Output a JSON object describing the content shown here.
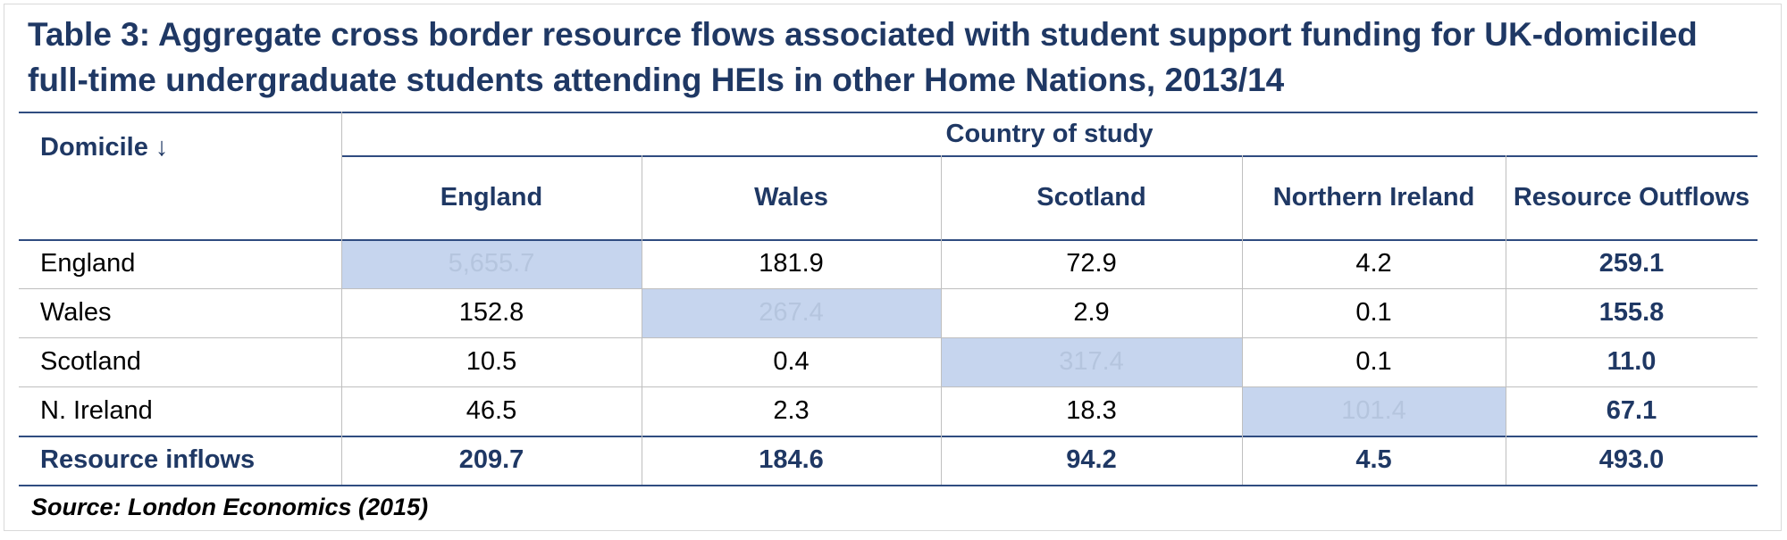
{
  "title": "Table 3: Aggregate cross border resource flows associated with student support funding for UK-domiciled full-time undergraduate students attending HEIs in other Home Nations, 2013/14",
  "table": {
    "group_header": "Country of study",
    "row_header": "Domicile ↓",
    "columns": [
      "England",
      "Wales",
      "Scotland",
      "Northern Ireland",
      "Resource Outflows"
    ],
    "rows": [
      [
        "England",
        "5,655.7",
        "181.9",
        "72.9",
        "4.2",
        "259.1"
      ],
      [
        "Wales",
        "152.8",
        "267.4",
        "2.9",
        "0.1",
        "155.8"
      ],
      [
        "Scotland",
        "10.5",
        "0.4",
        "317.4",
        "0.1",
        "11.0"
      ],
      [
        "N. Ireland",
        "46.5",
        "2.3",
        "18.3",
        "101.4",
        "67.1"
      ],
      [
        "Resource inflows",
        "209.7",
        "184.6",
        "94.2",
        "4.5",
        "493.0"
      ]
    ]
  },
  "source": "Source: London Economics (2015)"
}
